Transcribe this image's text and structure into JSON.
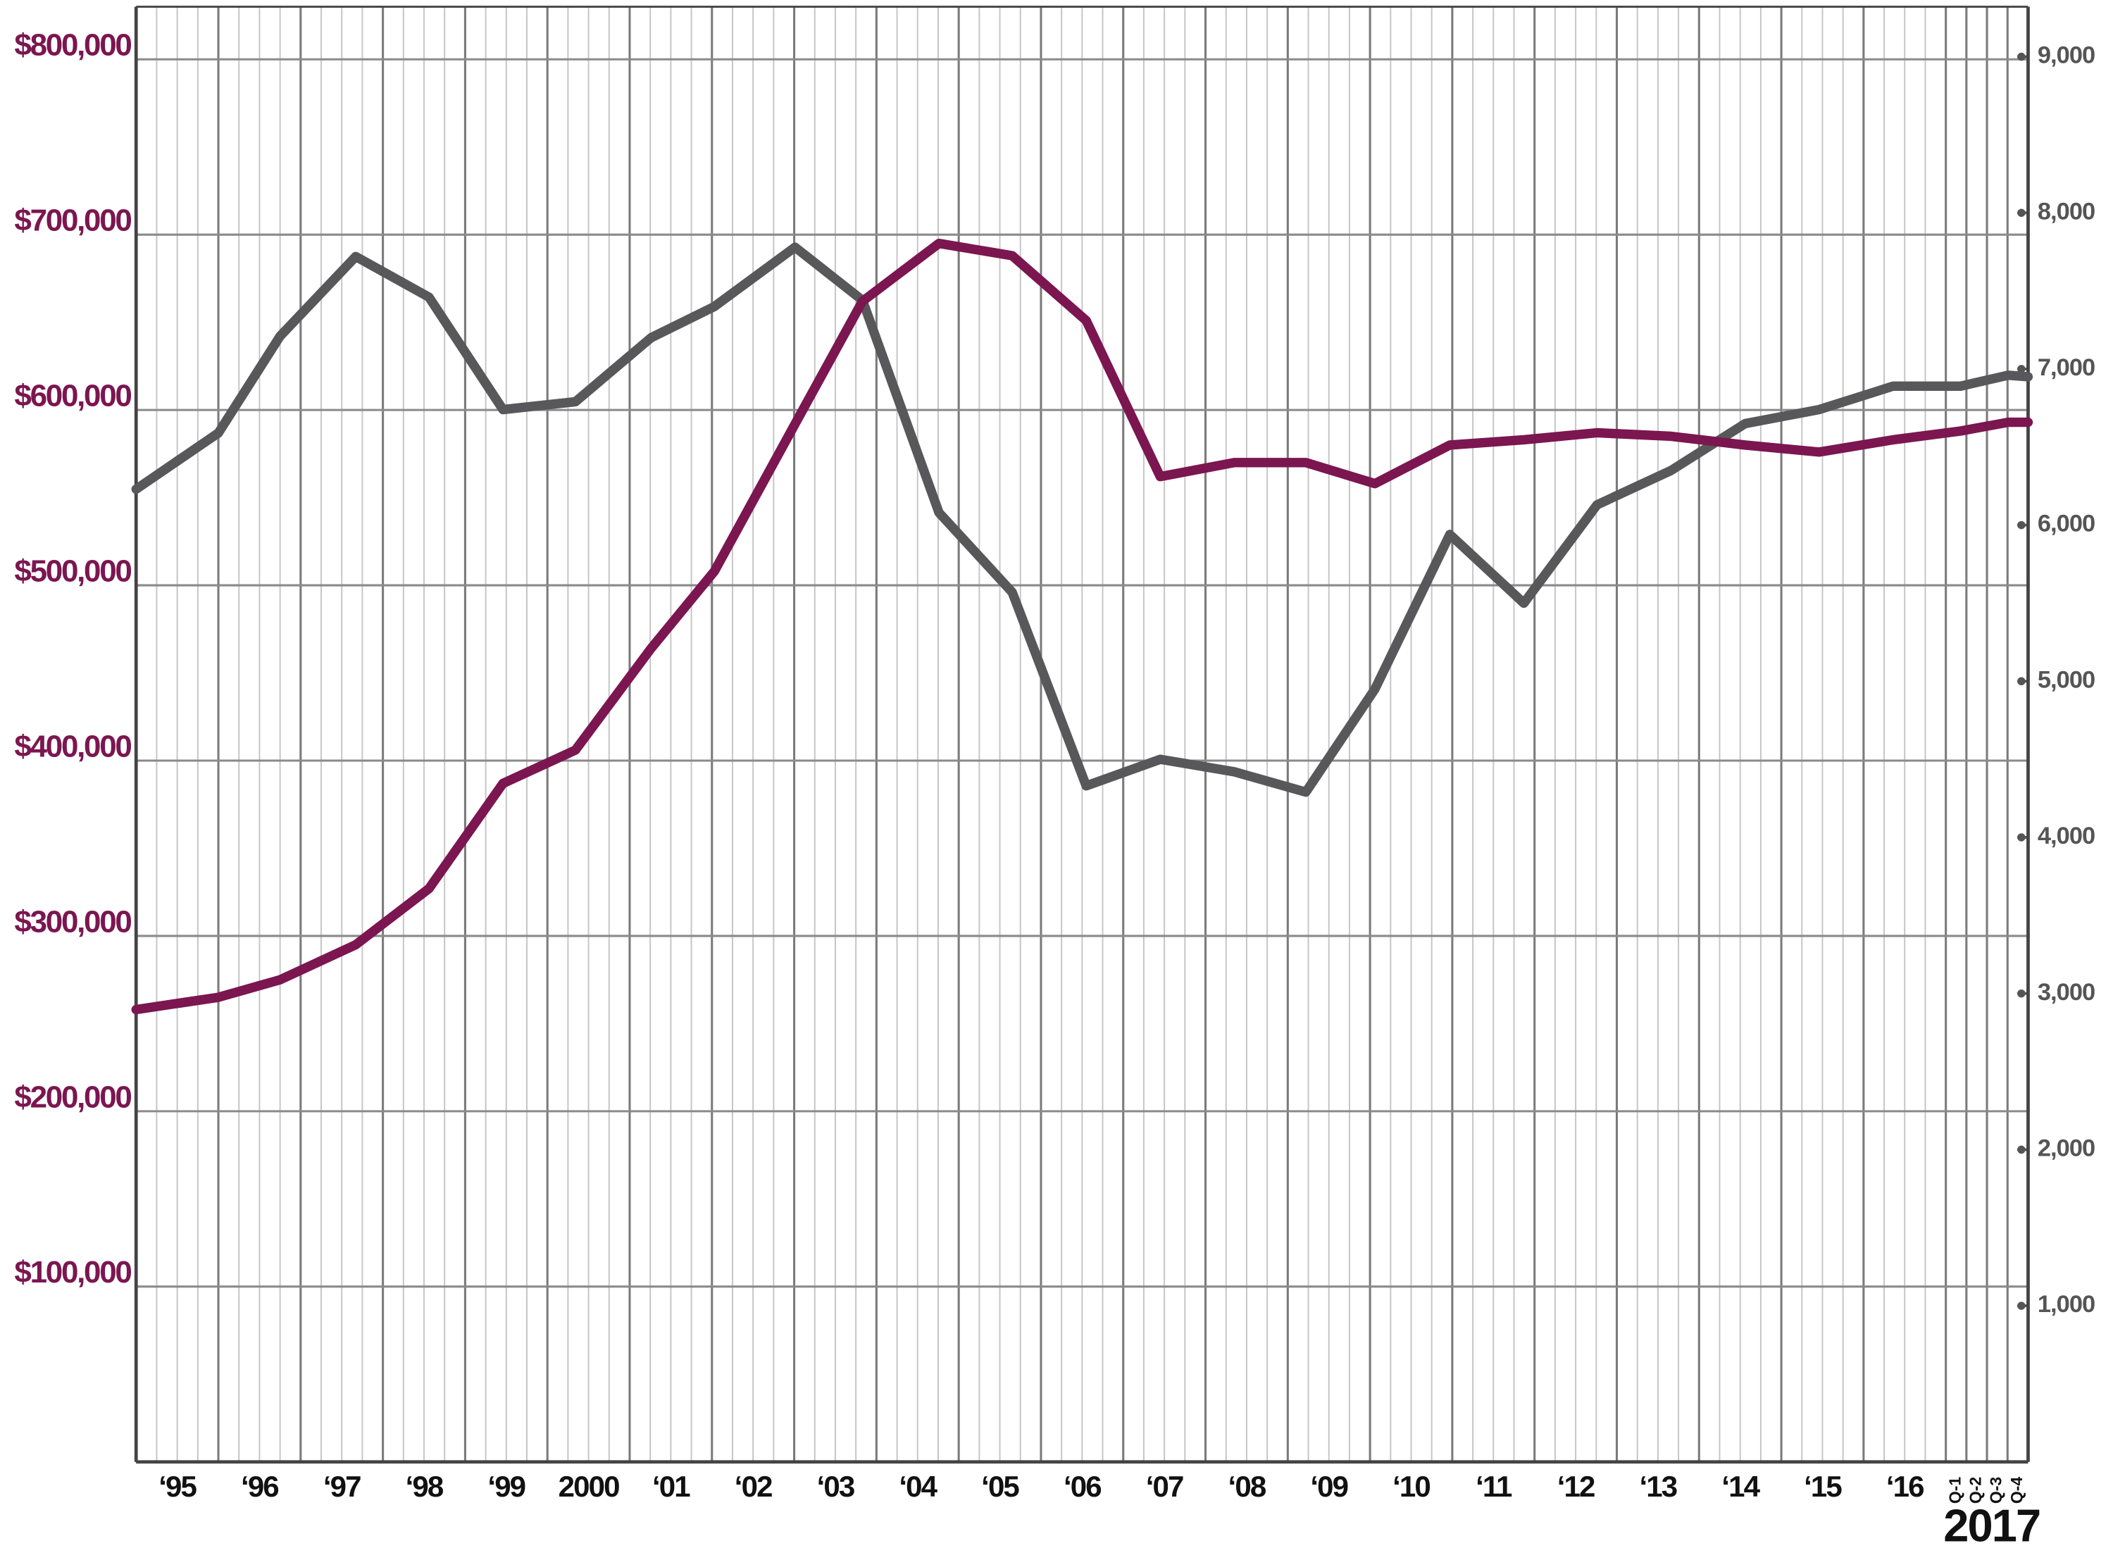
{
  "chart_data": {
    "type": "line",
    "x": [
      1995.0,
      1996.0,
      1996.75,
      1997.67,
      1998.56,
      1999.46,
      2000.34,
      2001.26,
      2002.03,
      2003.01,
      2003.83,
      2004.76,
      2005.65,
      2006.55,
      2007.45,
      2008.35,
      2009.22,
      2010.06,
      2010.97,
      2011.87,
      2012.76,
      2013.66,
      2014.56,
      2015.46,
      2016.36,
      2017.18,
      2017.76,
      2018.0
    ],
    "xlim": [
      1995,
      2018
    ],
    "xticks": [
      {
        "value": 1995.5,
        "label": "‘95"
      },
      {
        "value": 1996.5,
        "label": "‘96"
      },
      {
        "value": 1997.5,
        "label": "‘97"
      },
      {
        "value": 1998.5,
        "label": "‘98"
      },
      {
        "value": 1999.5,
        "label": "‘99"
      },
      {
        "value": 2000.5,
        "label": "2000"
      },
      {
        "value": 2001.5,
        "label": "‘01"
      },
      {
        "value": 2002.5,
        "label": "‘02"
      },
      {
        "value": 2003.5,
        "label": "‘03"
      },
      {
        "value": 2004.5,
        "label": "‘04"
      },
      {
        "value": 2005.5,
        "label": "‘05"
      },
      {
        "value": 2006.5,
        "label": "‘06"
      },
      {
        "value": 2007.5,
        "label": "‘07"
      },
      {
        "value": 2008.5,
        "label": "‘08"
      },
      {
        "value": 2009.5,
        "label": "‘09"
      },
      {
        "value": 2010.5,
        "label": "‘10"
      },
      {
        "value": 2011.5,
        "label": "‘11"
      },
      {
        "value": 2012.5,
        "label": "‘12"
      },
      {
        "value": 2013.5,
        "label": "‘13"
      },
      {
        "value": 2014.5,
        "label": "‘14"
      },
      {
        "value": 2015.5,
        "label": "‘15"
      },
      {
        "value": 2016.5,
        "label": "‘16"
      }
    ],
    "quarter_ticks": [
      {
        "value": 2017.125,
        "label": "Q-1"
      },
      {
        "value": 2017.375,
        "label": "Q-2"
      },
      {
        "value": 2017.625,
        "label": "Q-3"
      },
      {
        "value": 2017.875,
        "label": "Q-4"
      }
    ],
    "annotation": "2017",
    "ylim": [
      0,
      830000
    ],
    "yticks": [
      {
        "value": 100000,
        "label": "$100,000"
      },
      {
        "value": 200000,
        "label": "$200,000"
      },
      {
        "value": 300000,
        "label": "$300,000"
      },
      {
        "value": 400000,
        "label": "$400,000"
      },
      {
        "value": 500000,
        "label": "$500,000"
      },
      {
        "value": 600000,
        "label": "$600,000"
      },
      {
        "value": 700000,
        "label": "$700,000"
      },
      {
        "value": 800000,
        "label": "$800,000"
      }
    ],
    "y2lim": [
      0,
      9320
    ],
    "y2ticks": [
      {
        "value": 1000,
        "label": "1,000"
      },
      {
        "value": 2000,
        "label": "2,000"
      },
      {
        "value": 3000,
        "label": "3,000"
      },
      {
        "value": 4000,
        "label": "4,000"
      },
      {
        "value": 5000,
        "label": "5,000"
      },
      {
        "value": 6000,
        "label": "6,000"
      },
      {
        "value": 7000,
        "label": "7,000"
      },
      {
        "value": 8000,
        "label": "8,000"
      },
      {
        "value": 9000,
        "label": "9,000"
      }
    ],
    "grid": true,
    "series": [
      {
        "color": "#7b1650",
        "axis": "y",
        "values": [
          258000,
          265000,
          275000,
          295000,
          327000,
          387000,
          406000,
          464000,
          508000,
          592000,
          662000,
          695000,
          688000,
          651000,
          562000,
          570000,
          570000,
          558000,
          580000,
          583000,
          587000,
          585000,
          580000,
          576000,
          583000,
          588000,
          593000,
          593000
        ]
      },
      {
        "color": "#58585a",
        "axis": "y2",
        "values": [
          6230,
          6590,
          7210,
          7720,
          7460,
          6740,
          6790,
          7200,
          7400,
          7780,
          7440,
          6080,
          5570,
          4330,
          4500,
          4420,
          4290,
          4950,
          5940,
          5500,
          6130,
          6350,
          6650,
          6740,
          6890,
          6890,
          6960,
          6950
        ]
      }
    ]
  }
}
